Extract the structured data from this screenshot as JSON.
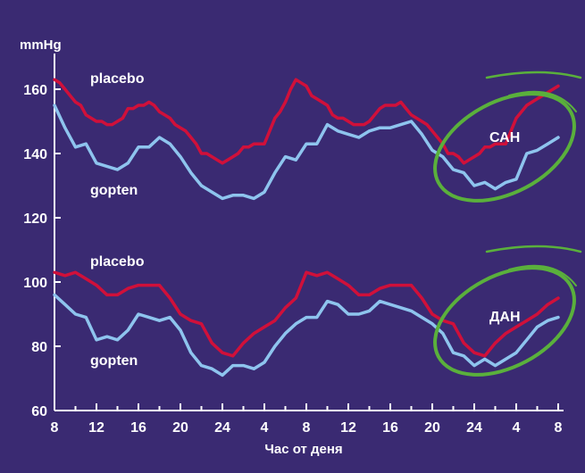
{
  "chart_data": {
    "type": "line",
    "ylabel": "mmHg",
    "xlabel": "Час от деня",
    "ylim": [
      60,
      170
    ],
    "yticks": [
      60,
      80,
      100,
      120,
      140,
      160
    ],
    "x_tick_labels": [
      "8",
      "12",
      "16",
      "20",
      "24",
      "4",
      "8",
      "12",
      "16",
      "20",
      "24",
      "4",
      "8"
    ],
    "colors": {
      "background": "#3a2a72",
      "placebo": "#d0103a",
      "gopten": "#8ec4ee",
      "ellipse": "#5ab03c",
      "axis": "#ffffff"
    },
    "labels": {
      "systolic_placebo": "placebo",
      "systolic_gopten": "gopten",
      "diastolic_placebo": "placebo",
      "diastolic_gopten": "gopten",
      "systolic_tag": "САН",
      "diastolic_tag": "ДАН"
    },
    "series": [
      {
        "name": "placebo",
        "group": "САН",
        "x": [
          0,
          0.5,
          1,
          1.5,
          2,
          2.5,
          3,
          3.5,
          4,
          4.5,
          5,
          5.5,
          6,
          6.5,
          7,
          7.5,
          8,
          8.5,
          9,
          9.5,
          10,
          10.5,
          11,
          11.5,
          12,
          12.5,
          13,
          13.5,
          14,
          14.5,
          15,
          15.5,
          16,
          16.5,
          17,
          17.5,
          18,
          18.5,
          19,
          19.5,
          20,
          20.5,
          21,
          21.5,
          22,
          22.5,
          23,
          23.5,
          24,
          24.5,
          25,
          25.5,
          26,
          26.5,
          27,
          27.5,
          28,
          28.5,
          29,
          29.5,
          30,
          30.5,
          31,
          31.5,
          32,
          32.5,
          33,
          33.5,
          34,
          34.5,
          35,
          35.5,
          36,
          36.5,
          37,
          37.5,
          38,
          38.5,
          39,
          39.5,
          40,
          40.5,
          41,
          41.5,
          42,
          42.5,
          43,
          43.5,
          44,
          44.5,
          45,
          45.5,
          46,
          46.5,
          47,
          47.5,
          48
        ],
        "values": [
          163,
          162,
          160,
          158,
          156,
          155,
          152,
          151,
          150,
          150,
          149,
          149,
          150,
          151,
          154,
          154,
          155,
          155,
          156,
          155,
          153,
          152,
          151,
          149,
          148,
          147,
          145,
          143,
          140,
          140,
          139,
          138,
          137,
          138,
          139,
          140,
          142,
          142,
          143,
          143,
          143,
          147,
          151,
          153,
          156,
          160,
          163,
          162,
          161,
          158,
          157,
          156,
          155,
          152,
          151,
          151,
          150,
          149,
          149,
          149,
          150,
          152,
          154,
          155,
          155,
          155,
          156,
          154,
          152,
          151,
          150,
          149,
          147,
          145,
          143,
          140,
          140,
          139,
          137,
          138,
          139,
          140,
          142,
          142,
          143,
          143,
          143,
          147,
          151,
          153,
          155,
          156,
          157,
          158,
          159,
          160,
          161
        ],
        "__values_note": "full 97-point curve, twice-hourly samples"
      },
      {
        "name": "gopten",
        "group": "САН",
        "x": [
          0,
          1,
          2,
          3,
          4,
          5,
          6,
          7,
          8,
          9,
          10,
          11,
          12,
          13,
          14,
          15,
          16,
          17,
          18,
          19,
          20,
          21,
          22,
          23,
          24,
          25,
          26,
          27,
          28,
          29,
          30,
          31,
          32,
          33,
          34,
          35,
          36,
          37,
          38,
          39,
          40,
          41,
          42,
          43,
          44,
          45,
          46,
          47,
          48
        ],
        "values": [
          155,
          148,
          142,
          143,
          137,
          136,
          135,
          137,
          142,
          142,
          145,
          143,
          139,
          134,
          130,
          128,
          126,
          127,
          127,
          126,
          128,
          134,
          139,
          138,
          143,
          143,
          149,
          147,
          146,
          145,
          147,
          148,
          148,
          149,
          150,
          146,
          141,
          139,
          135,
          134,
          130,
          131,
          129,
          131,
          132,
          140,
          141,
          143,
          145
        ]
      },
      {
        "name": "placebo",
        "group": "ДАН",
        "x": [
          0,
          1,
          2,
          3,
          4,
          5,
          6,
          7,
          8,
          9,
          10,
          11,
          12,
          13,
          14,
          15,
          16,
          17,
          18,
          19,
          20,
          21,
          22,
          23,
          24,
          25,
          26,
          27,
          28,
          29,
          30,
          31,
          32,
          33,
          34,
          35,
          36,
          37,
          38,
          39,
          40,
          41,
          42,
          43,
          44,
          45,
          46,
          47,
          48
        ],
        "values": [
          103,
          102,
          103,
          101,
          99,
          96,
          96,
          98,
          99,
          99,
          99,
          95,
          90,
          88,
          87,
          81,
          78,
          77,
          81,
          84,
          86,
          88,
          92,
          95,
          103,
          102,
          103,
          101,
          99,
          96,
          96,
          98,
          99,
          99,
          99,
          95,
          90,
          88,
          87,
          81,
          78,
          77,
          81,
          84,
          86,
          88,
          90,
          93,
          95
        ]
      },
      {
        "name": "gopten",
        "group": "ДАН",
        "x": [
          0,
          1,
          2,
          3,
          4,
          5,
          6,
          7,
          8,
          9,
          10,
          11,
          12,
          13,
          14,
          15,
          16,
          17,
          18,
          19,
          20,
          21,
          22,
          23,
          24,
          25,
          26,
          27,
          28,
          29,
          30,
          31,
          32,
          33,
          34,
          35,
          36,
          37,
          38,
          39,
          40,
          41,
          42,
          43,
          44,
          45,
          46,
          47,
          48
        ],
        "values": [
          96,
          93,
          90,
          89,
          82,
          83,
          82,
          85,
          90,
          89,
          88,
          89,
          85,
          78,
          74,
          73,
          71,
          74,
          74,
          73,
          75,
          80,
          84,
          87,
          89,
          89,
          94,
          93,
          90,
          90,
          91,
          94,
          93,
          92,
          91,
          89,
          87,
          84,
          78,
          77,
          74,
          76,
          74,
          76,
          78,
          82,
          86,
          88,
          89
        ]
      }
    ]
  }
}
